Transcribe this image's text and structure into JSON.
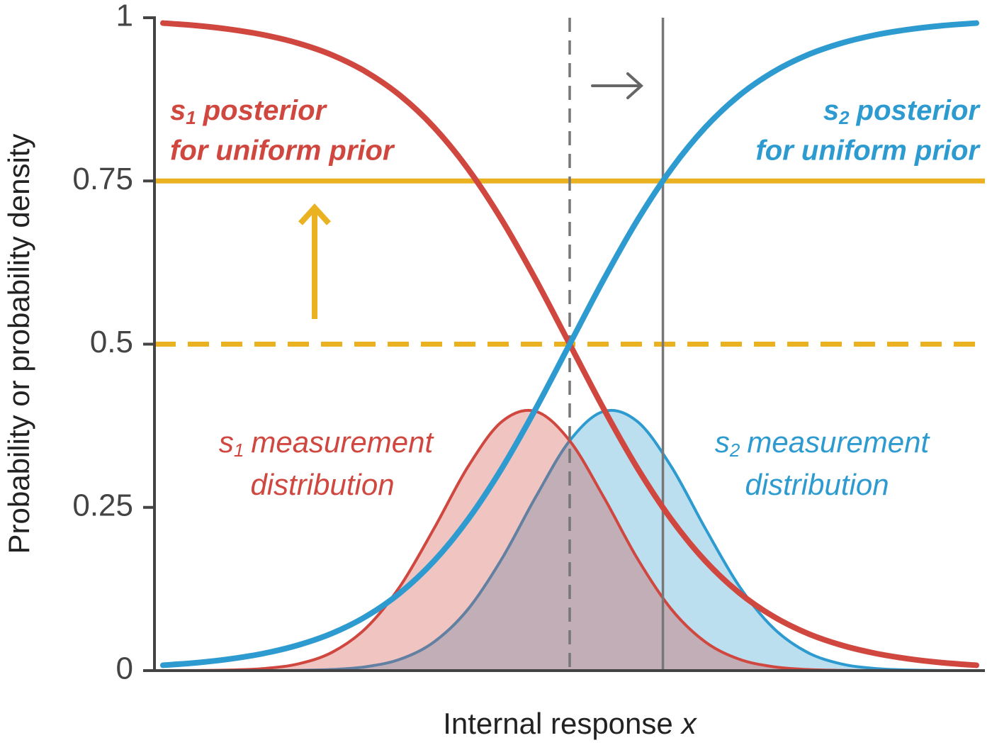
{
  "chart_data": {
    "type": "line",
    "ylabel": "Probability or probability density",
    "xlabel": "Internal response",
    "xlabel_var": "x",
    "x": [
      -4.8,
      -4.4,
      -4.0,
      -3.6,
      -3.2,
      -2.8,
      -2.4,
      -2.0,
      -1.6,
      -1.2,
      -0.8,
      -0.4,
      0,
      0.4,
      0.8,
      1.2,
      1.6,
      2.0,
      2.4,
      2.8,
      3.2,
      3.6,
      4.0,
      4.4,
      4.8
    ],
    "series": [
      {
        "color": "#2e9bd0",
        "style": "area",
        "values": [
          0.0,
          0.0,
          0.0,
          0.0001,
          0.0004,
          0.0017,
          0.006,
          0.0175,
          0.044,
          0.094,
          0.1714,
          0.2661,
          0.3521,
          0.397,
          0.3814,
          0.3123,
          0.2179,
          0.1295,
          0.0656,
          0.0283,
          0.0104,
          0.0033,
          0.0009,
          0.0002,
          0.0
        ]
      },
      {
        "color": "#d0473f",
        "style": "area",
        "values": [
          0.0,
          0.0002,
          0.0009,
          0.0033,
          0.0104,
          0.0283,
          0.0656,
          0.1295,
          0.2179,
          0.3123,
          0.3814,
          0.397,
          0.3521,
          0.2661,
          0.1714,
          0.094,
          0.044,
          0.0175,
          0.006,
          0.0017,
          0.0004,
          0.0001,
          0.0,
          0.0,
          0.0
        ]
      },
      {
        "color": "#d0473f",
        "style": "line",
        "values": [
          0.9918,
          0.9879,
          0.982,
          0.9734,
          0.9608,
          0.9427,
          0.9168,
          0.8808,
          0.832,
          0.7685,
          0.69,
          0.5987,
          0.5,
          0.4013,
          0.31,
          0.2315,
          0.168,
          0.1192,
          0.0832,
          0.0573,
          0.0392,
          0.0266,
          0.018,
          0.0121,
          0.0082
        ]
      },
      {
        "color": "#2e9bd0",
        "style": "line",
        "values": [
          0.0082,
          0.0121,
          0.018,
          0.0266,
          0.0392,
          0.0573,
          0.0832,
          0.1192,
          0.168,
          0.2315,
          0.31,
          0.4013,
          0.5,
          0.5987,
          0.69,
          0.7685,
          0.832,
          0.8808,
          0.9168,
          0.9427,
          0.9608,
          0.9734,
          0.982,
          0.9879,
          0.9918
        ]
      }
    ],
    "xlim": [
      -4.9,
      4.9
    ],
    "ylim": [
      0,
      1
    ],
    "yticks": [
      0,
      0.25,
      0.5,
      0.75,
      1
    ],
    "reference_lines": {
      "y": [
        {
          "value": 0.5,
          "color": "#eab221",
          "dashed": true
        },
        {
          "value": 0.75,
          "color": "#eab221",
          "dashed": false
        }
      ],
      "x": [
        {
          "value": 0,
          "color": "#777777",
          "dashed": true
        },
        {
          "value": 1.1,
          "color": "#777777",
          "dashed": false
        }
      ]
    },
    "annotations": [
      {
        "symbol": "s",
        "subscript": "1",
        "text": "posterior",
        "text2": "for uniform prior"
      },
      {
        "symbol": "s",
        "subscript": "2",
        "text": "posterior",
        "text2": "for uniform prior"
      },
      {
        "symbol": "s",
        "subscript": "1",
        "text": "measurement",
        "text2": "distribution"
      },
      {
        "symbol": "s",
        "subscript": "2",
        "text": "measurement",
        "text2": "distribution"
      }
    ]
  }
}
